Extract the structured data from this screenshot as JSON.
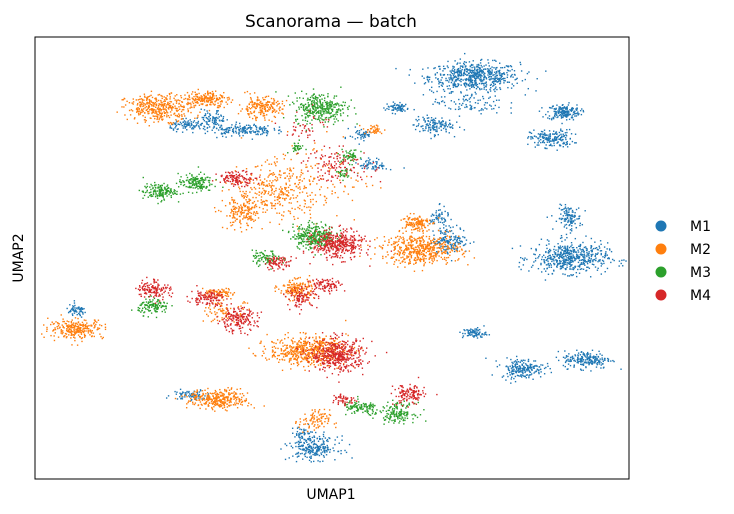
{
  "chart_data": {
    "type": "scatter",
    "title": "Scanorama — batch",
    "xlabel": "UMAP1",
    "ylabel": "UMAP2",
    "xlim": [
      0,
      100
    ],
    "ylim": [
      0,
      100
    ],
    "ticks": "none",
    "grid": false,
    "legend_position": "right",
    "point_style": "dense point clouds; values below are estimated cluster centers with spreads (UMAP units)",
    "series": [
      {
        "name": "M1",
        "color": "#1f77b4",
        "clusters": [
          {
            "x": 74,
            "y": 91,
            "sx": 3.8,
            "sy": 1.6,
            "n": 600
          },
          {
            "x": 89,
            "y": 83,
            "sx": 1.4,
            "sy": 0.9,
            "n": 180
          },
          {
            "x": 87,
            "y": 77,
            "sx": 1.8,
            "sy": 1.0,
            "n": 180
          },
          {
            "x": 90,
            "y": 59,
            "sx": 1.0,
            "sy": 1.4,
            "n": 120
          },
          {
            "x": 90,
            "y": 50,
            "sx": 3.2,
            "sy": 1.7,
            "n": 520
          },
          {
            "x": 93,
            "y": 27,
            "sx": 2.0,
            "sy": 1.0,
            "n": 200
          },
          {
            "x": 82,
            "y": 25,
            "sx": 1.8,
            "sy": 1.1,
            "n": 200
          },
          {
            "x": 74,
            "y": 33,
            "sx": 1.0,
            "sy": 0.6,
            "n": 80
          },
          {
            "x": 67,
            "y": 80,
            "sx": 1.6,
            "sy": 1.0,
            "n": 130
          },
          {
            "x": 61,
            "y": 84,
            "sx": 1.0,
            "sy": 0.6,
            "n": 70
          },
          {
            "x": 73,
            "y": 85,
            "sx": 3.0,
            "sy": 1.3,
            "n": 90
          },
          {
            "x": 70,
            "y": 54,
            "sx": 1.5,
            "sy": 1.5,
            "n": 150
          },
          {
            "x": 35,
            "y": 79,
            "sx": 2.5,
            "sy": 0.7,
            "n": 160
          },
          {
            "x": 30,
            "y": 81,
            "sx": 1.0,
            "sy": 1.2,
            "n": 90
          },
          {
            "x": 26,
            "y": 80,
            "sx": 1.6,
            "sy": 0.6,
            "n": 90
          },
          {
            "x": 7,
            "y": 38,
            "sx": 0.9,
            "sy": 0.7,
            "n": 60
          },
          {
            "x": 26,
            "y": 19,
            "sx": 1.4,
            "sy": 0.6,
            "n": 70
          },
          {
            "x": 47,
            "y": 7,
            "sx": 2.0,
            "sy": 1.3,
            "n": 230
          },
          {
            "x": 45,
            "y": 10,
            "sx": 1.0,
            "sy": 1.0,
            "n": 50
          },
          {
            "x": 57,
            "y": 71,
            "sx": 1.2,
            "sy": 0.7,
            "n": 60
          },
          {
            "x": 55,
            "y": 78,
            "sx": 1.0,
            "sy": 0.8,
            "n": 50
          },
          {
            "x": 68,
            "y": 59,
            "sx": 0.8,
            "sy": 1.2,
            "n": 60
          }
        ]
      },
      {
        "name": "M2",
        "color": "#ff7f0e",
        "clusters": [
          {
            "x": 21,
            "y": 84,
            "sx": 2.8,
            "sy": 1.5,
            "n": 380
          },
          {
            "x": 29,
            "y": 86,
            "sx": 1.8,
            "sy": 0.9,
            "n": 180
          },
          {
            "x": 38,
            "y": 84,
            "sx": 1.8,
            "sy": 1.2,
            "n": 200
          },
          {
            "x": 7,
            "y": 34,
            "sx": 2.3,
            "sy": 1.1,
            "n": 260
          },
          {
            "x": 41,
            "y": 65,
            "sx": 3.5,
            "sy": 3.0,
            "n": 300
          },
          {
            "x": 35,
            "y": 60,
            "sx": 1.6,
            "sy": 1.8,
            "n": 160
          },
          {
            "x": 65,
            "y": 52,
            "sx": 3.3,
            "sy": 1.7,
            "n": 500
          },
          {
            "x": 64,
            "y": 58,
            "sx": 1.2,
            "sy": 0.9,
            "n": 120
          },
          {
            "x": 31,
            "y": 42,
            "sx": 1.2,
            "sy": 0.6,
            "n": 70
          },
          {
            "x": 32,
            "y": 38,
            "sx": 1.6,
            "sy": 1.6,
            "n": 80
          },
          {
            "x": 44,
            "y": 43,
            "sx": 1.5,
            "sy": 1.1,
            "n": 160
          },
          {
            "x": 46,
            "y": 29,
            "sx": 3.3,
            "sy": 1.6,
            "n": 540
          },
          {
            "x": 31,
            "y": 18,
            "sx": 2.5,
            "sy": 1.1,
            "n": 320
          },
          {
            "x": 47,
            "y": 13,
            "sx": 1.3,
            "sy": 1.3,
            "n": 90
          },
          {
            "x": 57,
            "y": 79,
            "sx": 0.9,
            "sy": 0.6,
            "n": 40
          },
          {
            "x": 47,
            "y": 68,
            "sx": 5.0,
            "sy": 5.0,
            "n": 100
          }
        ]
      },
      {
        "name": "M3",
        "color": "#2ca02c",
        "clusters": [
          {
            "x": 48,
            "y": 84,
            "sx": 2.2,
            "sy": 1.7,
            "n": 330
          },
          {
            "x": 21,
            "y": 65,
            "sx": 1.4,
            "sy": 0.9,
            "n": 150
          },
          {
            "x": 27,
            "y": 67,
            "sx": 1.4,
            "sy": 1.0,
            "n": 150
          },
          {
            "x": 47,
            "y": 55,
            "sx": 1.8,
            "sy": 1.4,
            "n": 300
          },
          {
            "x": 39,
            "y": 50,
            "sx": 1.2,
            "sy": 0.8,
            "n": 80
          },
          {
            "x": 20,
            "y": 39,
            "sx": 1.3,
            "sy": 0.9,
            "n": 120
          },
          {
            "x": 55,
            "y": 16,
            "sx": 1.6,
            "sy": 0.8,
            "n": 110
          },
          {
            "x": 61,
            "y": 15,
            "sx": 1.5,
            "sy": 1.1,
            "n": 150
          },
          {
            "x": 53,
            "y": 73,
            "sx": 0.8,
            "sy": 0.8,
            "n": 50
          },
          {
            "x": 44,
            "y": 75,
            "sx": 0.6,
            "sy": 0.6,
            "n": 30
          },
          {
            "x": 52,
            "y": 69,
            "sx": 0.6,
            "sy": 0.6,
            "n": 30
          }
        ]
      },
      {
        "name": "M4",
        "color": "#d62728",
        "clusters": [
          {
            "x": 51,
            "y": 53,
            "sx": 2.1,
            "sy": 1.6,
            "n": 380
          },
          {
            "x": 34,
            "y": 68,
            "sx": 1.6,
            "sy": 0.8,
            "n": 120
          },
          {
            "x": 41,
            "y": 49,
            "sx": 1.2,
            "sy": 0.7,
            "n": 80
          },
          {
            "x": 20,
            "y": 43,
            "sx": 1.4,
            "sy": 1.1,
            "n": 130
          },
          {
            "x": 29,
            "y": 41,
            "sx": 1.4,
            "sy": 0.9,
            "n": 110
          },
          {
            "x": 34,
            "y": 36,
            "sx": 1.7,
            "sy": 1.3,
            "n": 180
          },
          {
            "x": 45,
            "y": 41,
            "sx": 1.3,
            "sy": 1.1,
            "n": 90
          },
          {
            "x": 49,
            "y": 44,
            "sx": 1.6,
            "sy": 0.8,
            "n": 90
          },
          {
            "x": 51,
            "y": 28,
            "sx": 2.3,
            "sy": 1.8,
            "n": 420
          },
          {
            "x": 63,
            "y": 19,
            "sx": 1.3,
            "sy": 1.2,
            "n": 130
          },
          {
            "x": 51,
            "y": 71,
            "sx": 3.0,
            "sy": 1.8,
            "n": 120
          },
          {
            "x": 46,
            "y": 80,
            "sx": 1.8,
            "sy": 1.8,
            "n": 40
          },
          {
            "x": 52,
            "y": 18,
            "sx": 1.0,
            "sy": 0.7,
            "n": 50
          }
        ]
      }
    ]
  }
}
